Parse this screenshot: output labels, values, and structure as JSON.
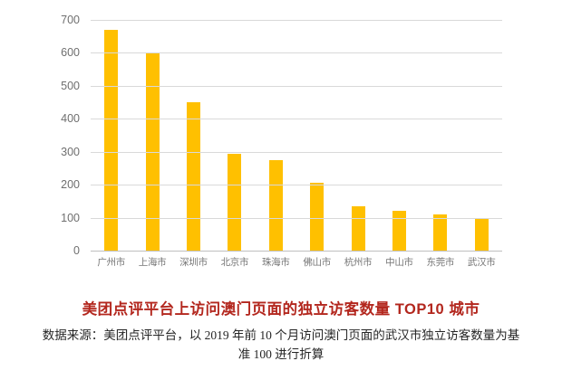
{
  "figure": {
    "background": "#ffffff"
  },
  "chart_data": {
    "type": "bar",
    "categories": [
      "广州市",
      "上海市",
      "深圳市",
      "北京市",
      "珠海市",
      "佛山市",
      "杭州市",
      "中山市",
      "东莞市",
      "武汉市"
    ],
    "values": [
      670,
      600,
      450,
      295,
      275,
      205,
      135,
      120,
      110,
      100
    ],
    "title": "美团点评平台上访问澳门页面的独立访客数量 TOP10 城市",
    "xlabel": "",
    "ylabel": "",
    "ylim": [
      0,
      700
    ],
    "yticks": [
      0,
      100,
      200,
      300,
      400,
      500,
      600,
      700
    ],
    "grid": true,
    "legend_position": "none",
    "bar_color": "#FFC000",
    "gridline_color": "#D9D9D9",
    "axis_line_color": "#BFBFBF",
    "tick_label_color": "#6F6F6F"
  },
  "title": {
    "text": "美团点评平台上访问澳门页面的独立访客数量 TOP10 城市",
    "color": "#B3271E"
  },
  "source_note": {
    "text": "数据来源：美团点评平台，以 2019 年前 10 个月访问澳门页面的武汉市独立访客数量为基准 100 进行折算",
    "line1": "数据来源：美团点评平台，以 2019 年前 10 个月访问澳门页面的武汉市独立访客数量为基",
    "line2": "准 100 进行折算"
  }
}
